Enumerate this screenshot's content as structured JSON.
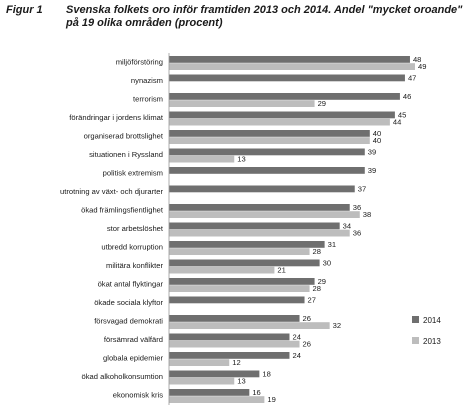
{
  "figure": {
    "label": "Figur 1",
    "title": "Svenska folkets oro inför framtiden 2013 och 2014. Andel \"mycket oroande\" på 19 olika områden (procent)"
  },
  "colors": {
    "series_2014": "#6f6f6f",
    "series_2013": "#bdbdbd"
  },
  "chart_data": {
    "type": "bar",
    "orientation": "horizontal",
    "title": "Svenska folkets oro inför framtiden 2013 och 2014. Andel \"mycket oroande\" på 19 olika områden (procent)",
    "xlabel": "",
    "ylabel": "",
    "xlim": [
      0,
      50
    ],
    "grid": false,
    "legend_position": "right",
    "categories": [
      "miljöförstöring",
      "nynazism",
      "terrorism",
      "förändringar i jordens klimat",
      "organiserad brottslighet",
      "situationen i Ryssland",
      "politisk extremism",
      "utrotning av växt- och djurarter",
      "ökad främlingsfientlighet",
      "stor arbetslöshet",
      "utbredd korruption",
      "militära konflikter",
      "ökat antal flyktingar",
      "ökade sociala klyftor",
      "försvagad demokrati",
      "försämrad välfärd",
      "globala epidemier",
      "ökad alkoholkonsumtion",
      "ekonomisk kris"
    ],
    "series": [
      {
        "name": "2014",
        "values": [
          48,
          47,
          46,
          45,
          40,
          39,
          39,
          37,
          36,
          34,
          31,
          30,
          29,
          27,
          26,
          24,
          24,
          18,
          16
        ]
      },
      {
        "name": "2013",
        "values": [
          49,
          null,
          29,
          44,
          40,
          13,
          null,
          null,
          38,
          36,
          28,
          21,
          28,
          null,
          32,
          26,
          12,
          13,
          19
        ]
      }
    ]
  }
}
